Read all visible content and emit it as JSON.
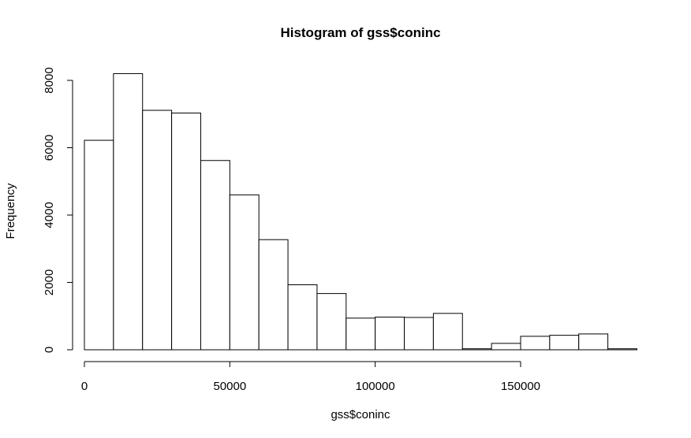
{
  "chart_data": {
    "type": "bar",
    "title": "Histogram of gss$coninc",
    "xlabel": "gss$coninc",
    "ylabel": "Frequency",
    "bin_width": 10000,
    "x": [
      0,
      10000,
      20000,
      30000,
      40000,
      50000,
      60000,
      70000,
      80000,
      90000,
      100000,
      110000,
      120000,
      130000,
      140000,
      150000,
      160000,
      170000,
      180000
    ],
    "values": [
      6220,
      8200,
      7110,
      7030,
      5620,
      4600,
      3270,
      1930,
      1670,
      940,
      970,
      960,
      1080,
      30,
      190,
      400,
      430,
      470,
      30
    ],
    "xlim": [
      0,
      190000
    ],
    "ylim": [
      0,
      8200
    ],
    "xticks": [
      0,
      50000,
      100000,
      150000
    ],
    "xtick_labels": [
      "0",
      "50000",
      "100000",
      "150000"
    ],
    "yticks": [
      0,
      2000,
      4000,
      6000,
      8000
    ],
    "ytick_labels": [
      "0",
      "2000",
      "4000",
      "6000",
      "8000"
    ],
    "grid": false,
    "legend": "none",
    "bar_fill": "#ffffff",
    "bar_stroke": "#000000"
  }
}
